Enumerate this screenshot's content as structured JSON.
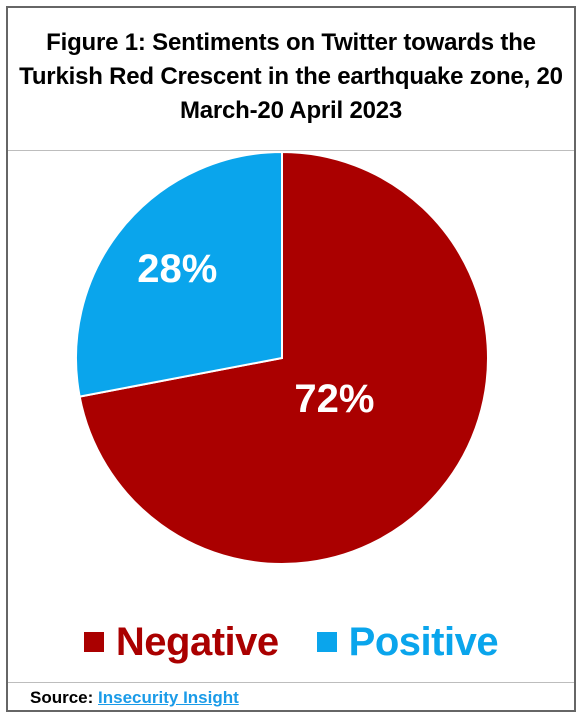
{
  "title": "Figure 1: Sentiments on Twitter towards the Turkish Red Crescent in the earthquake zone, 20 March-20 April 2023",
  "source": {
    "label": "Source:",
    "link_text": "Insecurity Insight"
  },
  "chart_data": {
    "type": "pie",
    "title": "Figure 1: Sentiments on Twitter towards the Turkish Red Crescent in the earthquake zone, 20 March-20 April 2023",
    "slices": [
      {
        "label": "Negative",
        "value": 72,
        "display": "72%",
        "color": "#aa0000"
      },
      {
        "label": "Positive",
        "value": 28,
        "display": "28%",
        "color": "#0aa5ec"
      }
    ],
    "legend_position": "bottom"
  }
}
